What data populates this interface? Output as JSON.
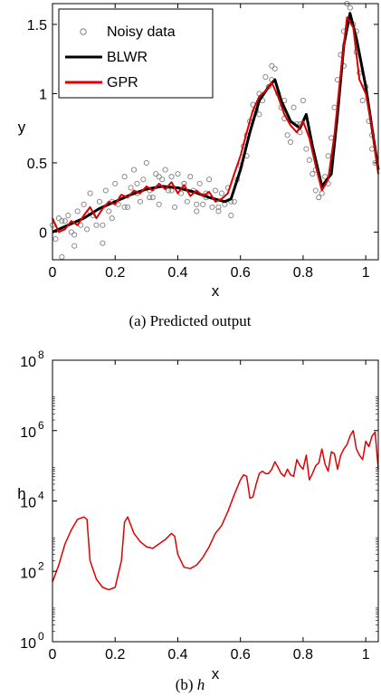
{
  "chart_data": [
    {
      "type": "scatter",
      "caption": "(a) Predicted output",
      "xlabel": "x",
      "ylabel": "y",
      "xlim": [
        0,
        1.04
      ],
      "ylim": [
        -0.2,
        1.65
      ],
      "xticks": [
        0,
        0.2,
        0.4,
        0.6,
        0.8,
        1
      ],
      "xtick_labels": [
        "0",
        "0.2",
        "0.4",
        "0.6",
        "0.8",
        "1"
      ],
      "yticks": [
        0,
        0.5,
        1,
        1.5
      ],
      "ytick_labels": [
        "0",
        "0.5",
        "1",
        "1.5"
      ],
      "legend": {
        "position": "top-left",
        "entries": [
          {
            "label": "Noisy data",
            "style": "marker-circle",
            "color": "#808080"
          },
          {
            "label": "BLWR",
            "style": "line",
            "color": "#000000"
          },
          {
            "label": "GPR",
            "style": "line",
            "color": "#e00000"
          }
        ]
      },
      "series": [
        {
          "name": "BLWR",
          "color": "#000000",
          "x": [
            0.0,
            0.05,
            0.1,
            0.15,
            0.2,
            0.25,
            0.3,
            0.35,
            0.4,
            0.45,
            0.5,
            0.55,
            0.57,
            0.6,
            0.63,
            0.66,
            0.69,
            0.71,
            0.73,
            0.76,
            0.79,
            0.81,
            0.83,
            0.86,
            0.89,
            0.91,
            0.93,
            0.95,
            0.97,
            1.0,
            1.04
          ],
          "y": [
            0.0,
            0.05,
            0.1,
            0.17,
            0.22,
            0.27,
            0.31,
            0.33,
            0.32,
            0.29,
            0.25,
            0.22,
            0.24,
            0.45,
            0.72,
            0.95,
            1.05,
            1.1,
            0.95,
            0.8,
            0.75,
            0.85,
            0.62,
            0.33,
            0.42,
            0.85,
            1.35,
            1.58,
            1.4,
            1.05,
            0.45
          ]
        },
        {
          "name": "GPR",
          "color": "#e00000",
          "x": [
            0.0,
            0.02,
            0.04,
            0.06,
            0.08,
            0.1,
            0.12,
            0.14,
            0.16,
            0.18,
            0.2,
            0.22,
            0.24,
            0.26,
            0.28,
            0.3,
            0.32,
            0.34,
            0.36,
            0.38,
            0.4,
            0.42,
            0.44,
            0.46,
            0.48,
            0.5,
            0.52,
            0.54,
            0.56,
            0.58,
            0.6,
            0.62,
            0.64,
            0.66,
            0.68,
            0.7,
            0.72,
            0.74,
            0.76,
            0.78,
            0.8,
            0.82,
            0.84,
            0.86,
            0.88,
            0.9,
            0.92,
            0.94,
            0.96,
            0.98,
            1.0,
            1.02,
            1.04
          ],
          "y": [
            0.1,
            0.0,
            0.02,
            0.08,
            0.05,
            0.12,
            0.18,
            0.1,
            0.17,
            0.22,
            0.2,
            0.27,
            0.25,
            0.3,
            0.28,
            0.33,
            0.3,
            0.35,
            0.31,
            0.36,
            0.28,
            0.34,
            0.26,
            0.3,
            0.26,
            0.29,
            0.22,
            0.24,
            0.28,
            0.42,
            0.55,
            0.72,
            0.88,
            0.98,
            1.02,
            1.08,
            0.98,
            0.85,
            0.77,
            0.72,
            0.8,
            0.68,
            0.48,
            0.3,
            0.38,
            0.7,
            1.15,
            1.55,
            1.48,
            1.1,
            1.0,
            0.75,
            0.42
          ]
        }
      ],
      "noisy_data": {
        "name": "Noisy data",
        "color": "#808080",
        "x": [
          0.0,
          0.01,
          0.02,
          0.03,
          0.04,
          0.05,
          0.06,
          0.07,
          0.08,
          0.09,
          0.1,
          0.11,
          0.12,
          0.13,
          0.14,
          0.15,
          0.16,
          0.17,
          0.18,
          0.19,
          0.2,
          0.21,
          0.22,
          0.23,
          0.24,
          0.25,
          0.26,
          0.27,
          0.28,
          0.29,
          0.3,
          0.31,
          0.32,
          0.33,
          0.34,
          0.35,
          0.36,
          0.37,
          0.38,
          0.39,
          0.4,
          0.41,
          0.42,
          0.43,
          0.44,
          0.45,
          0.46,
          0.47,
          0.48,
          0.49,
          0.5,
          0.51,
          0.52,
          0.53,
          0.54,
          0.55,
          0.56,
          0.57,
          0.58,
          0.59,
          0.6,
          0.61,
          0.62,
          0.63,
          0.64,
          0.65,
          0.66,
          0.67,
          0.68,
          0.69,
          0.7,
          0.71,
          0.72,
          0.73,
          0.74,
          0.75,
          0.76,
          0.77,
          0.78,
          0.79,
          0.8,
          0.81,
          0.82,
          0.83,
          0.84,
          0.85,
          0.86,
          0.87,
          0.88,
          0.89,
          0.9,
          0.91,
          0.92,
          0.93,
          0.94,
          0.95,
          0.96,
          0.97,
          0.98,
          0.99,
          1.0,
          1.01,
          1.02,
          1.03,
          0.03,
          0.07,
          0.12,
          0.16,
          0.19,
          0.23,
          0.27,
          0.31,
          0.34,
          0.38,
          0.42,
          0.46,
          0.49,
          0.53,
          0.57,
          0.62,
          0.66,
          0.7,
          0.74,
          0.79,
          0.84,
          0.88,
          0.93,
          0.97,
          1.02
        ],
        "y": [
          0.05,
          -0.05,
          0.1,
          -0.18,
          0.08,
          0.12,
          0.0,
          -0.02,
          0.15,
          0.05,
          0.2,
          0.02,
          0.28,
          0.12,
          0.05,
          0.22,
          -0.08,
          0.3,
          0.15,
          0.1,
          0.35,
          0.2,
          0.25,
          0.4,
          0.18,
          0.32,
          0.45,
          0.28,
          0.22,
          0.38,
          0.5,
          0.3,
          0.25,
          0.42,
          0.2,
          0.38,
          0.45,
          0.3,
          0.4,
          0.18,
          0.42,
          0.28,
          0.35,
          0.22,
          0.4,
          0.3,
          0.15,
          0.35,
          0.2,
          0.25,
          0.38,
          0.18,
          0.3,
          0.15,
          0.28,
          0.2,
          0.32,
          0.12,
          0.22,
          0.38,
          0.48,
          0.62,
          0.7,
          0.8,
          0.92,
          0.88,
          1.0,
          0.95,
          1.12,
          1.05,
          1.2,
          1.18,
          1.0,
          0.9,
          0.82,
          0.7,
          0.65,
          0.9,
          0.78,
          0.72,
          0.95,
          0.6,
          0.52,
          0.42,
          0.3,
          0.25,
          0.28,
          0.4,
          0.55,
          0.68,
          0.9,
          1.1,
          1.28,
          1.45,
          1.65,
          1.62,
          1.5,
          1.3,
          1.15,
          0.95,
          1.05,
          0.8,
          0.6,
          0.5,
          0.08,
          -0.1,
          0.15,
          0.05,
          0.22,
          0.18,
          0.35,
          0.25,
          0.4,
          0.3,
          0.35,
          0.2,
          0.28,
          0.18,
          0.22,
          0.55,
          0.85,
          1.1,
          0.95,
          0.78,
          0.45,
          0.35,
          1.2,
          1.45,
          0.7
        ]
      }
    },
    {
      "type": "line",
      "caption_prefix": "(b)",
      "caption_symbol": "h",
      "xlabel": "x",
      "ylabel": "h",
      "yscale": "log",
      "xlim": [
        0,
        1.04
      ],
      "ylim_log10": [
        0,
        8
      ],
      "xticks": [
        0,
        0.2,
        0.4,
        0.6,
        0.8,
        1
      ],
      "xtick_labels": [
        "0",
        "0.2",
        "0.4",
        "0.6",
        "0.8",
        "1"
      ],
      "yticks_log10": [
        0,
        2,
        4,
        6,
        8
      ],
      "ytick_base": "10",
      "ytick_exps": [
        "0",
        "2",
        "4",
        "6",
        "8"
      ],
      "series": [
        {
          "color": "#e00000",
          "x": [
            0.0,
            0.02,
            0.04,
            0.06,
            0.08,
            0.1,
            0.11,
            0.12,
            0.14,
            0.16,
            0.18,
            0.2,
            0.22,
            0.23,
            0.24,
            0.26,
            0.28,
            0.3,
            0.32,
            0.34,
            0.36,
            0.38,
            0.39,
            0.4,
            0.42,
            0.44,
            0.46,
            0.48,
            0.5,
            0.52,
            0.54,
            0.56,
            0.58,
            0.6,
            0.61,
            0.62,
            0.63,
            0.64,
            0.65,
            0.66,
            0.67,
            0.68,
            0.69,
            0.7,
            0.71,
            0.72,
            0.73,
            0.74,
            0.75,
            0.76,
            0.77,
            0.78,
            0.79,
            0.8,
            0.81,
            0.82,
            0.83,
            0.84,
            0.85,
            0.86,
            0.87,
            0.88,
            0.89,
            0.9,
            0.91,
            0.92,
            0.93,
            0.94,
            0.95,
            0.96,
            0.97,
            0.98,
            0.99,
            1.0,
            1.01,
            1.02,
            1.03,
            1.04
          ],
          "y": [
            50,
            150,
            600,
            1500,
            3000,
            3500,
            3000,
            200,
            60,
            35,
            30,
            35,
            200,
            2500,
            3500,
            1200,
            700,
            500,
            450,
            600,
            800,
            1200,
            1000,
            300,
            130,
            120,
            150,
            250,
            500,
            1200,
            2000,
            5000,
            15000,
            40000,
            55000,
            50000,
            12000,
            13000,
            30000,
            60000,
            70000,
            60000,
            60000,
            80000,
            130000,
            90000,
            60000,
            50000,
            80000,
            55000,
            50000,
            150000,
            100000,
            80000,
            200000,
            40000,
            60000,
            100000,
            120000,
            300000,
            110000,
            70000,
            250000,
            220000,
            80000,
            200000,
            300000,
            400000,
            700000,
            1000000,
            300000,
            200000,
            150000,
            500000,
            350000,
            700000,
            900000,
            80000
          ]
        }
      ]
    }
  ]
}
